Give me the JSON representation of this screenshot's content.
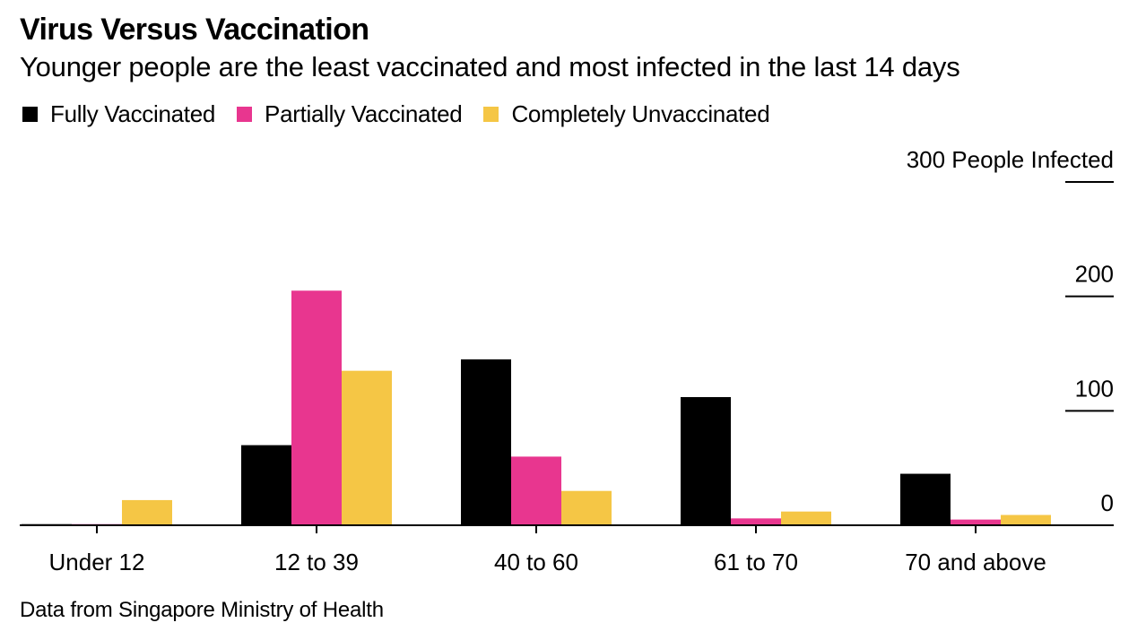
{
  "header": {
    "title": "Virus Versus Vaccination",
    "subtitle": "Younger people are the least vaccinated and most infected in the last 14 days"
  },
  "legend": [
    {
      "label": "Fully Vaccinated",
      "color": "#000000"
    },
    {
      "label": "Partially Vaccinated",
      "color": "#E8368F"
    },
    {
      "label": "Completely Unvaccinated",
      "color": "#F5C645"
    }
  ],
  "footer": {
    "source": "Data from Singapore Ministry of Health"
  },
  "chart_data": {
    "type": "bar",
    "title": "Virus Versus Vaccination",
    "subtitle": "Younger people are the least vaccinated and most infected in the last 14 days",
    "xlabel": "",
    "ylabel": "People Infected",
    "ylim": [
      0,
      300
    ],
    "yticks": [
      0,
      100,
      200,
      300
    ],
    "ytick_labels": [
      "0",
      "100",
      "200",
      "300 People Infected"
    ],
    "grid": false,
    "legend_position": "top-left",
    "categories": [
      "Under 12",
      "12 to 39",
      "40 to 60",
      "61 to 70",
      "70 and above"
    ],
    "series": [
      {
        "name": "Fully Vaccinated",
        "color": "#000000",
        "values": [
          1,
          70,
          145,
          112,
          45
        ]
      },
      {
        "name": "Partially Vaccinated",
        "color": "#E8368F",
        "values": [
          1,
          205,
          60,
          6,
          5
        ]
      },
      {
        "name": "Completely Unvaccinated",
        "color": "#F5C645",
        "values": [
          22,
          135,
          30,
          12,
          9
        ]
      }
    ],
    "source": "Data from Singapore Ministry of Health"
  }
}
